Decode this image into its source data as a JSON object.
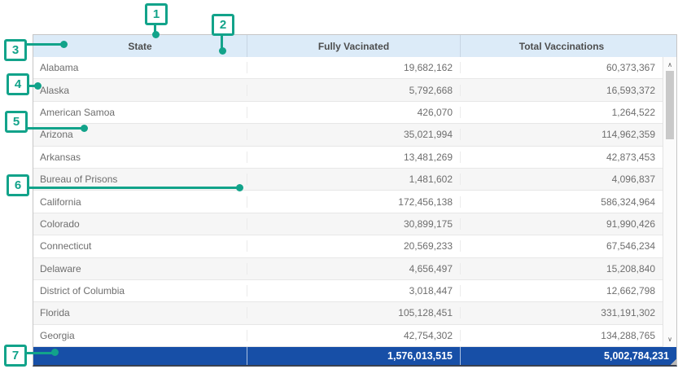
{
  "table": {
    "columns": {
      "state": "State",
      "fully_vaccinated": "Fully Vacinated",
      "total_vaccinations": "Total Vaccinations"
    },
    "rows": [
      {
        "state": "Alabama",
        "fully_vaccinated": "19,682,162",
        "total_vaccinations": "60,373,367"
      },
      {
        "state": "Alaska",
        "fully_vaccinated": "5,792,668",
        "total_vaccinations": "16,593,372"
      },
      {
        "state": "American Samoa",
        "fully_vaccinated": "426,070",
        "total_vaccinations": "1,264,522"
      },
      {
        "state": "Arizona",
        "fully_vaccinated": "35,021,994",
        "total_vaccinations": "114,962,359"
      },
      {
        "state": "Arkansas",
        "fully_vaccinated": "13,481,269",
        "total_vaccinations": "42,873,453"
      },
      {
        "state": "Bureau of Prisons",
        "fully_vaccinated": "1,481,602",
        "total_vaccinations": "4,096,837"
      },
      {
        "state": "California",
        "fully_vaccinated": "172,456,138",
        "total_vaccinations": "586,324,964"
      },
      {
        "state": "Colorado",
        "fully_vaccinated": "30,899,175",
        "total_vaccinations": "91,990,426"
      },
      {
        "state": "Connecticut",
        "fully_vaccinated": "20,569,233",
        "total_vaccinations": "67,546,234"
      },
      {
        "state": "Delaware",
        "fully_vaccinated": "4,656,497",
        "total_vaccinations": "15,208,840"
      },
      {
        "state": "District of Columbia",
        "fully_vaccinated": "3,018,447",
        "total_vaccinations": "12,662,798"
      },
      {
        "state": "Florida",
        "fully_vaccinated": "105,128,451",
        "total_vaccinations": "331,191,302"
      },
      {
        "state": "Georgia",
        "fully_vaccinated": "42,754,302",
        "total_vaccinations": "134,288,765"
      }
    ],
    "totals": {
      "state": "",
      "fully_vaccinated": "1,576,013,515",
      "total_vaccinations": "5,002,784,231"
    }
  },
  "scrollbar": {
    "up_icon": "∧",
    "down_icon": "∨"
  },
  "annotations": {
    "labels": [
      "1",
      "2",
      "3",
      "4",
      "5",
      "6",
      "7"
    ]
  },
  "colors": {
    "callout_accent": "#12a38a",
    "header_bg": "#dcebf8",
    "totals_row_bg": "#174fa7",
    "row_stripe": "#f6f6f6"
  }
}
